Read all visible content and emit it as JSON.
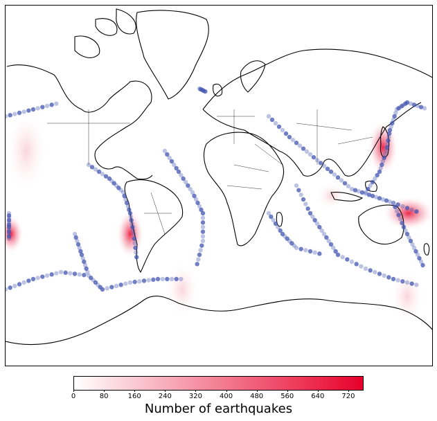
{
  "map": {
    "projection": "mercator",
    "features": [
      "coastlines",
      "country-borders",
      "earthquake-density-heatmap",
      "earthquake-points"
    ],
    "point_color": "#4053b0",
    "heat_low_color": "#ffffff",
    "heat_high_color": "#e8002a"
  },
  "colorbar": {
    "min": 0,
    "max": 760,
    "ticks": [
      "0",
      "80",
      "160",
      "240",
      "320",
      "400",
      "480",
      "560",
      "640",
      "720"
    ],
    "tick_values": [
      0,
      80,
      160,
      240,
      320,
      400,
      480,
      560,
      640,
      720
    ],
    "label": "Number of earthquakes",
    "gradient_colors": [
      "#ffffff",
      "#e8002a"
    ]
  }
}
